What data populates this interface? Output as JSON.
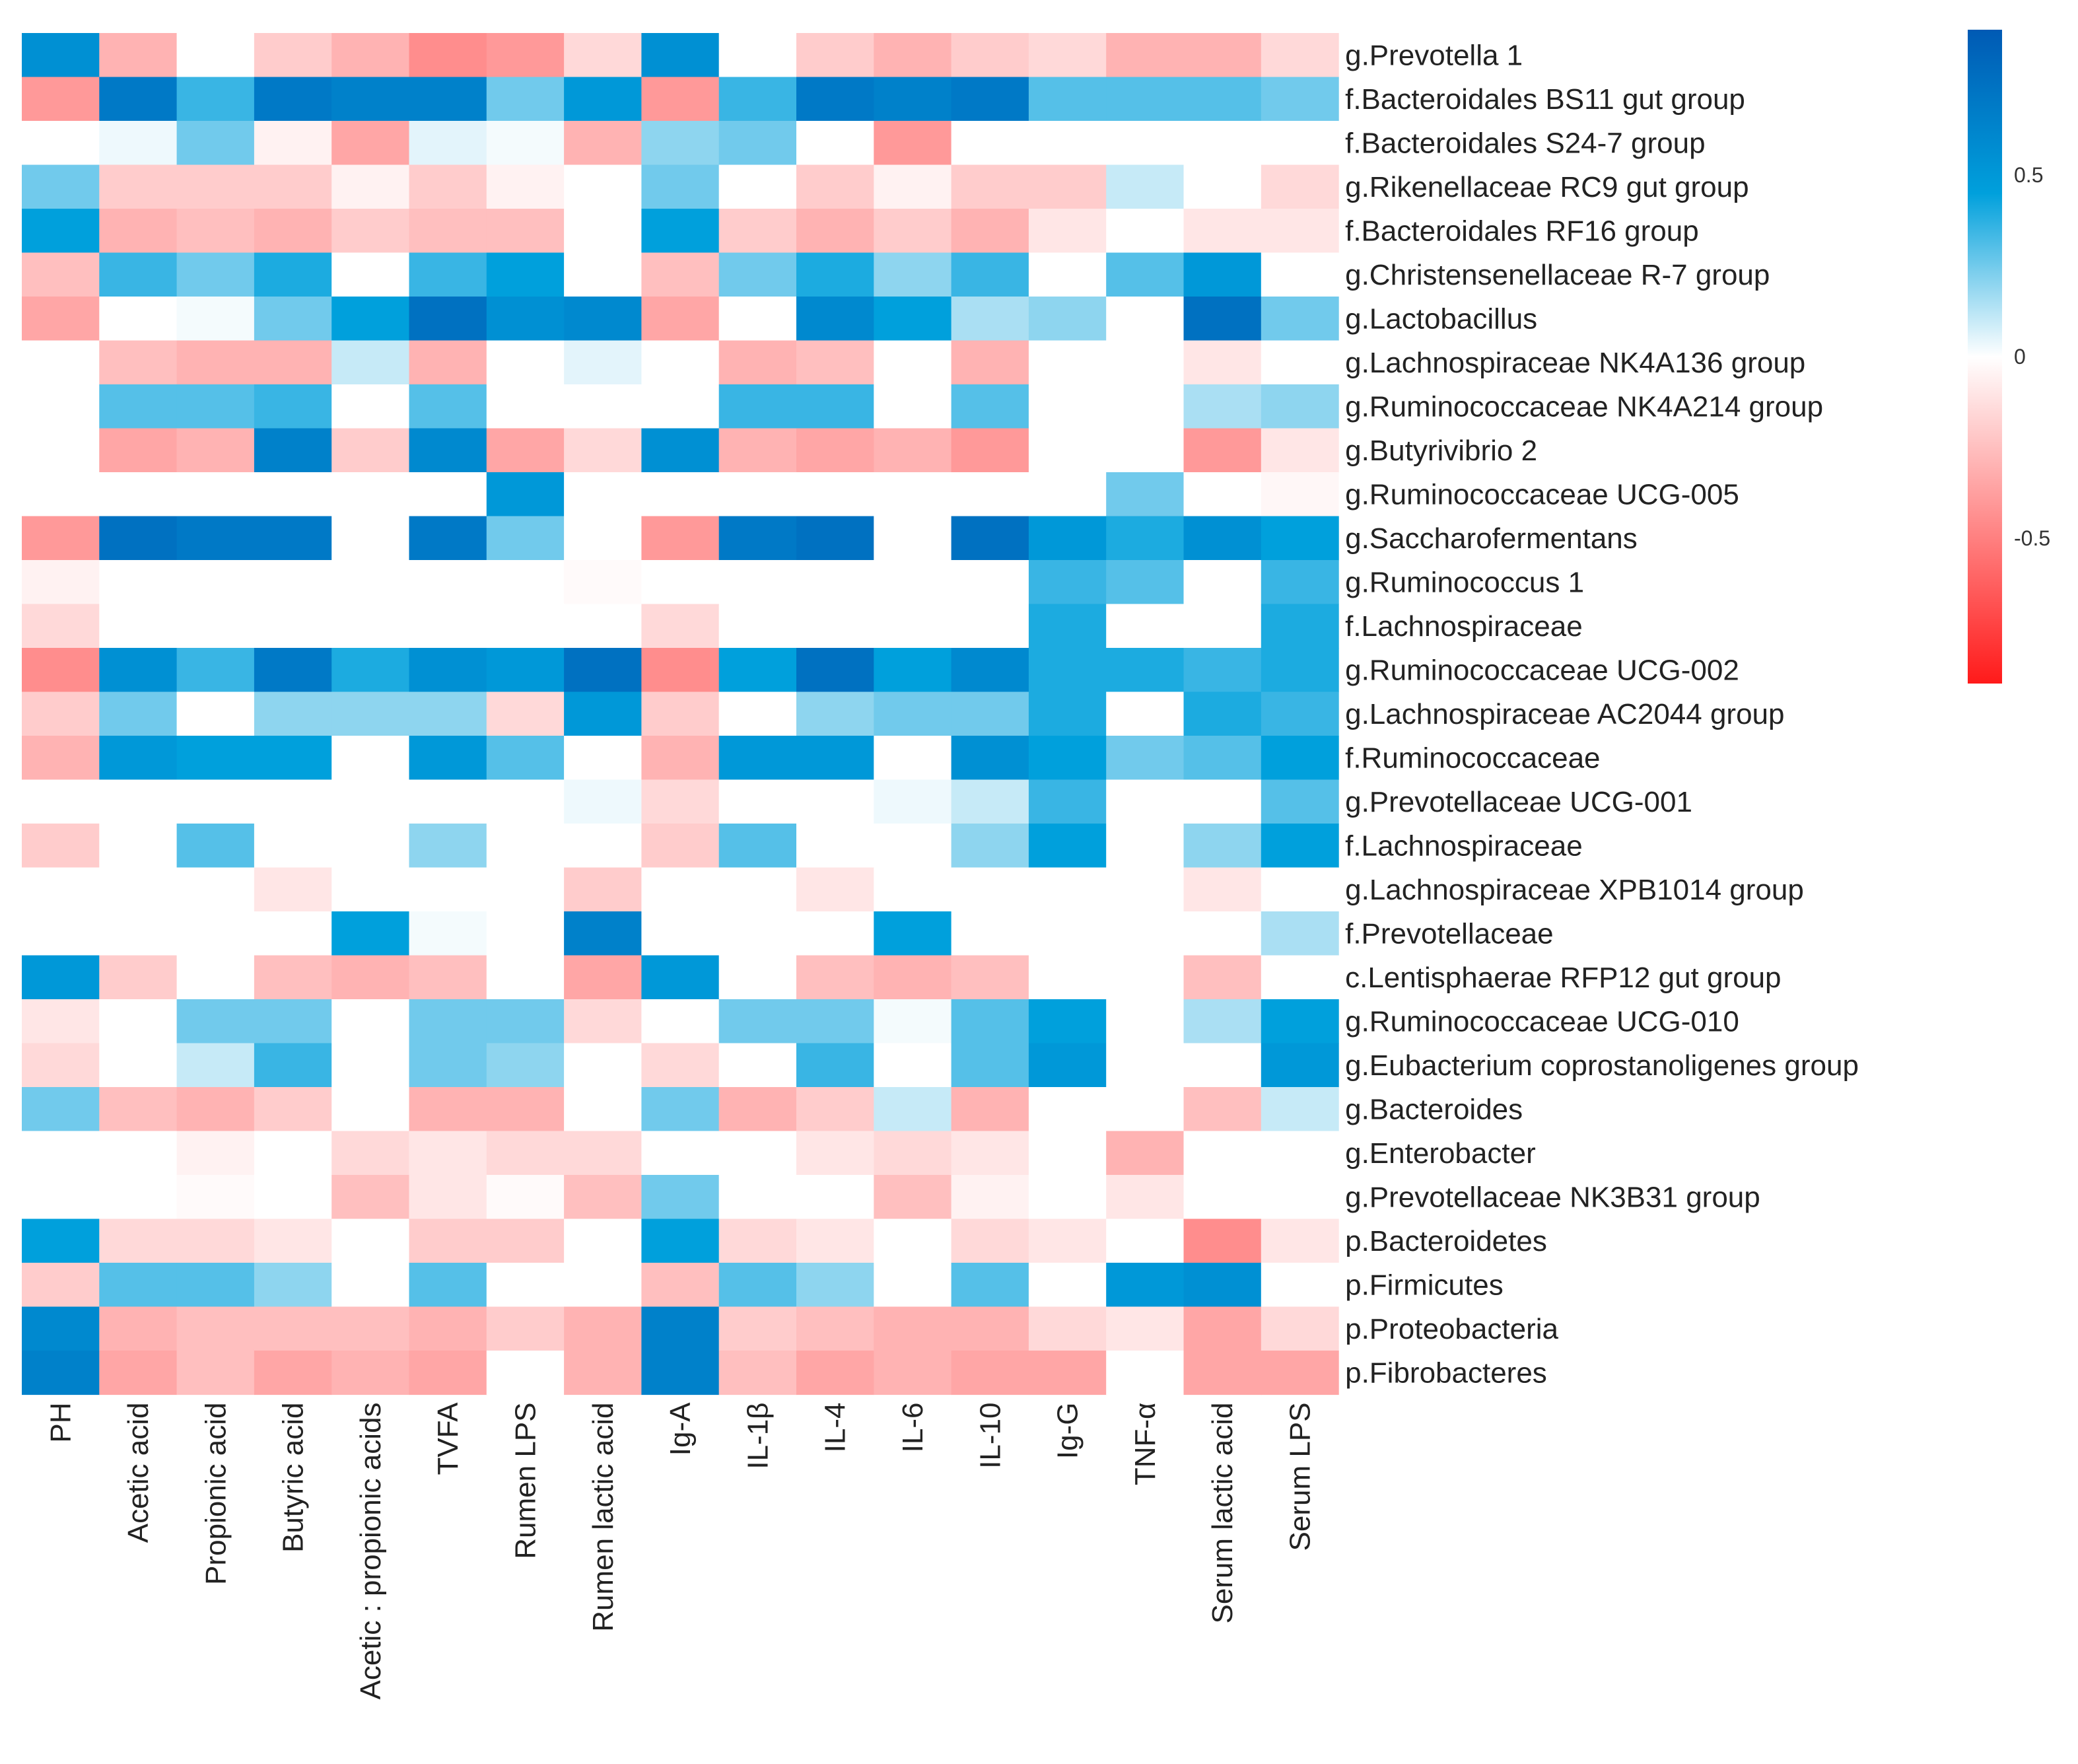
{
  "chart_data": {
    "type": "heatmap",
    "title": "",
    "xlabel": "",
    "ylabel": "",
    "columns": [
      "PH",
      "Acetic acid",
      "Propionic acid",
      "Butyric acid",
      "Acetic : propionic acids",
      "TVFA",
      "Rumen LPS",
      "Rumen lactic acid",
      "Ig-A",
      "IL-1β",
      "IL-4",
      "IL-6",
      "IL-10",
      "Ig-G",
      "TNF-α",
      "Serum lactic acid",
      "Serum LPS"
    ],
    "rows": [
      "g.Prevotella 1",
      "f.Bacteroidales BS11 gut group",
      "f.Bacteroidales S24-7 group",
      "g.Rikenellaceae RC9 gut group",
      "f.Bacteroidales RF16 group",
      "g.Christensenellaceae R-7 group",
      "g.Lactobacillus",
      "g.Lachnospiraceae NK4A136 group",
      "g.Ruminococcaceae NK4A214 group",
      "g.Butyrivibrio 2",
      "g.Ruminococcaceae UCG-005",
      "g.Saccharofermentans",
      "g.Ruminococcus 1",
      "f.Lachnospiraceae",
      "g.Ruminococcaceae UCG-002",
      "g.Lachnospiraceae AC2044 group",
      "f.Ruminococcaceae",
      "g.Prevotellaceae UCG-001",
      "f.Lachnospiraceae",
      "g.Lachnospiraceae XPB1014 group",
      "f.Prevotellaceae",
      "c.Lentisphaerae RFP12 gut group",
      "g.Ruminococcaceae UCG-010",
      "g.Eubacterium coprostanoligenes group",
      "g.Bacteroides",
      "g.Enterobacter",
      "g.Prevotellaceae NK3B31 group",
      "p.Bacteroidetes",
      "p.Firmicutes",
      "p.Proteobacteria",
      "p.Fibrobacteres"
    ],
    "values": [
      [
        0.55,
        -0.3,
        0,
        -0.2,
        -0.3,
        -0.45,
        -0.4,
        -0.15,
        0.55,
        0,
        -0.2,
        -0.3,
        -0.2,
        -0.15,
        -0.3,
        -0.3,
        -0.15
      ],
      [
        -0.4,
        0.7,
        0.35,
        0.7,
        0.65,
        0.65,
        0.25,
        0.5,
        -0.4,
        0.35,
        0.7,
        0.65,
        0.7,
        0.3,
        0.3,
        0.3,
        0.25
      ],
      [
        0,
        0.03,
        0.25,
        -0.05,
        -0.35,
        0.05,
        0.02,
        -0.3,
        0.2,
        0.25,
        0,
        -0.4,
        0,
        0,
        0,
        0,
        0
      ],
      [
        0.25,
        -0.2,
        -0.2,
        -0.2,
        -0.05,
        -0.2,
        -0.05,
        0,
        0.25,
        0,
        -0.2,
        -0.05,
        -0.2,
        -0.2,
        0.1,
        0,
        -0.15
      ],
      [
        0.45,
        -0.3,
        -0.25,
        -0.3,
        -0.2,
        -0.25,
        -0.25,
        0,
        0.45,
        -0.2,
        -0.3,
        -0.2,
        -0.3,
        -0.1,
        0,
        -0.1,
        -0.1
      ],
      [
        -0.25,
        0.35,
        0.25,
        0.4,
        0,
        0.35,
        0.45,
        0,
        -0.25,
        0.25,
        0.4,
        0.2,
        0.35,
        0,
        0.3,
        0.5,
        0
      ],
      [
        -0.35,
        0,
        0.02,
        0.25,
        0.45,
        0.75,
        0.55,
        0.6,
        -0.35,
        0,
        0.6,
        0.45,
        0.15,
        0.2,
        0,
        0.75,
        0.25
      ],
      [
        0,
        -0.25,
        -0.3,
        -0.3,
        0.1,
        -0.3,
        0,
        0.05,
        0,
        -0.3,
        -0.25,
        0,
        -0.3,
        0,
        0,
        -0.1,
        0
      ],
      [
        0,
        0.3,
        0.3,
        0.35,
        0,
        0.3,
        0,
        0,
        0,
        0.35,
        0.35,
        0,
        0.3,
        0,
        0,
        0.15,
        0.2
      ],
      [
        0,
        -0.35,
        -0.3,
        0.65,
        -0.2,
        0.6,
        -0.35,
        -0.15,
        0.55,
        -0.3,
        -0.35,
        -0.3,
        -0.4,
        0,
        0,
        -0.4,
        -0.1
      ],
      [
        0,
        0,
        0,
        0,
        0,
        0,
        0.5,
        0,
        0,
        0,
        0,
        0,
        0,
        0,
        0.25,
        0,
        -0.03
      ],
      [
        -0.4,
        0.75,
        0.7,
        0.7,
        0,
        0.7,
        0.25,
        0,
        -0.4,
        0.7,
        0.75,
        0,
        0.75,
        0.5,
        0.4,
        0.55,
        0.45
      ],
      [
        -0.05,
        0,
        0,
        0,
        0,
        0,
        0,
        -0.02,
        0,
        0,
        0,
        0,
        0,
        0.35,
        0.3,
        0,
        0.35
      ],
      [
        -0.15,
        0,
        0,
        0,
        0,
        0,
        0,
        0,
        -0.15,
        0,
        0,
        0,
        0,
        0.4,
        0,
        0,
        0.4
      ],
      [
        -0.45,
        0.55,
        0.35,
        0.7,
        0.4,
        0.55,
        0.5,
        0.75,
        -0.45,
        0.45,
        0.75,
        0.45,
        0.6,
        0.4,
        0.4,
        0.35,
        0.4
      ],
      [
        -0.2,
        0.25,
        0,
        0.2,
        0.2,
        0.2,
        -0.15,
        0.5,
        -0.2,
        0,
        0.2,
        0.25,
        0.25,
        0.4,
        0,
        0.4,
        0.35
      ],
      [
        -0.3,
        0.5,
        0.45,
        0.45,
        0,
        0.5,
        0.3,
        0,
        -0.3,
        0.5,
        0.5,
        0,
        0.55,
        0.45,
        0.25,
        0.3,
        0.45
      ],
      [
        0,
        0,
        0,
        0,
        0,
        0,
        0,
        0.03,
        -0.15,
        0,
        0,
        0.03,
        0.1,
        0.35,
        0,
        0,
        0.3
      ],
      [
        -0.2,
        0,
        0.3,
        0,
        0,
        0.2,
        0,
        0,
        -0.2,
        0.3,
        0,
        0,
        0.2,
        0.45,
        0,
        0.2,
        0.45
      ],
      [
        0,
        0,
        0,
        -0.1,
        0,
        0,
        0,
        -0.2,
        0,
        0,
        -0.1,
        0,
        0,
        0,
        0,
        -0.1,
        0
      ],
      [
        0,
        0,
        0,
        0,
        0.45,
        0.02,
        0,
        0.65,
        0,
        0,
        0,
        0.45,
        0,
        0,
        0,
        0,
        0.15
      ],
      [
        0.5,
        -0.2,
        0,
        -0.25,
        -0.3,
        -0.25,
        0,
        -0.35,
        0.5,
        0,
        -0.25,
        -0.3,
        -0.25,
        0,
        0,
        -0.25,
        0
      ],
      [
        -0.1,
        0,
        0.25,
        0.25,
        0,
        0.25,
        0.25,
        -0.15,
        0,
        0.25,
        0.25,
        0.02,
        0.3,
        0.45,
        0,
        0.15,
        0.45
      ],
      [
        -0.15,
        0,
        0.1,
        0.35,
        0,
        0.25,
        0.2,
        0,
        -0.15,
        0,
        0.35,
        0,
        0.3,
        0.5,
        0,
        0,
        0.5
      ],
      [
        0.25,
        -0.25,
        -0.3,
        -0.2,
        0,
        -0.3,
        -0.3,
        0,
        0.25,
        -0.3,
        -0.2,
        0.1,
        -0.3,
        0,
        0,
        -0.25,
        0.1
      ],
      [
        0,
        0,
        -0.05,
        0,
        -0.15,
        -0.1,
        -0.15,
        -0.15,
        0,
        0,
        -0.1,
        -0.15,
        -0.1,
        0,
        -0.3,
        0,
        0
      ],
      [
        0,
        0,
        -0.02,
        0,
        -0.25,
        -0.1,
        -0.02,
        -0.25,
        0.25,
        0,
        0,
        -0.25,
        -0.05,
        0,
        -0.1,
        0,
        0
      ],
      [
        0.45,
        -0.15,
        -0.15,
        -0.1,
        0,
        -0.2,
        -0.2,
        0,
        0.45,
        -0.15,
        -0.1,
        0,
        -0.15,
        -0.1,
        0,
        -0.45,
        -0.1
      ],
      [
        -0.2,
        0.3,
        0.3,
        0.2,
        0,
        0.3,
        0,
        0,
        -0.25,
        0.3,
        0.2,
        0,
        0.3,
        0,
        0.5,
        0.55,
        0
      ],
      [
        0.6,
        -0.3,
        -0.25,
        -0.25,
        -0.25,
        -0.3,
        -0.2,
        -0.3,
        0.65,
        -0.2,
        -0.25,
        -0.3,
        -0.3,
        -0.15,
        -0.1,
        -0.35,
        -0.15
      ],
      [
        0.65,
        -0.35,
        -0.25,
        -0.35,
        -0.3,
        -0.35,
        0,
        -0.3,
        0.65,
        -0.25,
        -0.35,
        -0.3,
        -0.35,
        -0.35,
        0,
        -0.35,
        -0.35
      ]
    ],
    "color_scale": {
      "range": [
        -0.9,
        0.9
      ],
      "ticks": [
        {
          "value": 0.5,
          "label": "0.5"
        },
        {
          "value": 0,
          "label": "0"
        },
        {
          "value": -0.5,
          "label": "-0.5"
        }
      ],
      "colors": {
        "negative": "#ff1a1a",
        "zero": "#ffffff",
        "positive": "#005ab4",
        "mid_positive": "#00a0dc"
      }
    },
    "legend": "right"
  }
}
